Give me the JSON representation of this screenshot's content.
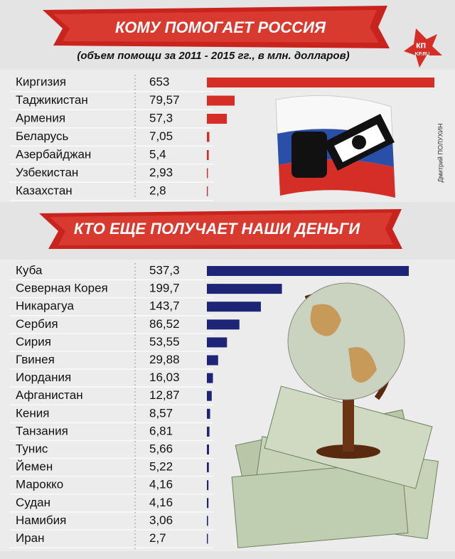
{
  "chart_data": [
    {
      "type": "bar",
      "title": "КОМУ ПОМОГАЕТ РОССИЯ",
      "subtitle": "(объем помощи за 2011 - 2015 гг., в млн. долларов)",
      "categories": [
        "Киргизия",
        "Таджикистан",
        "Армения",
        "Беларусь",
        "Азербайджан",
        "Узбекистан",
        "Казахстан"
      ],
      "values": [
        653,
        79.57,
        57.3,
        7.05,
        5.4,
        2.93,
        2.8
      ],
      "value_labels": [
        "653",
        "79,57",
        "57,3",
        "7,05",
        "5,4",
        "2,93",
        "2,8"
      ],
      "color": "#d42e27"
    },
    {
      "type": "bar",
      "title": "КТО ЕЩЕ ПОЛУЧАЕТ НАШИ ДЕНЬГИ",
      "categories": [
        "Куба",
        "Северная Корея",
        "Никарагуа",
        "Сербия",
        "Сирия",
        "Гвинея",
        "Иордания",
        "Афганистан",
        "Кения",
        "Танзания",
        "Тунис",
        "Йемен",
        "Марокко",
        "Судан",
        "Намибия",
        "Иран"
      ],
      "values": [
        537.3,
        199.7,
        143.7,
        86.52,
        53.55,
        29.88,
        16.03,
        12.87,
        8.57,
        6.81,
        5.66,
        5.22,
        4.16,
        4.16,
        3.06,
        2.7
      ],
      "value_labels": [
        "537,3",
        "199,7",
        "143,7",
        "86,52",
        "53,55",
        "29,88",
        "16,03",
        "12,87",
        "8,57",
        "6,81",
        "5,66",
        "5,22",
        "4,16",
        "4,16",
        "3,06",
        "2,7"
      ],
      "color": "#1e2577"
    }
  ],
  "logo": {
    "text": "кп",
    "site": "KP.RU"
  },
  "credit": "Дмитрий ПОЛУХИН"
}
